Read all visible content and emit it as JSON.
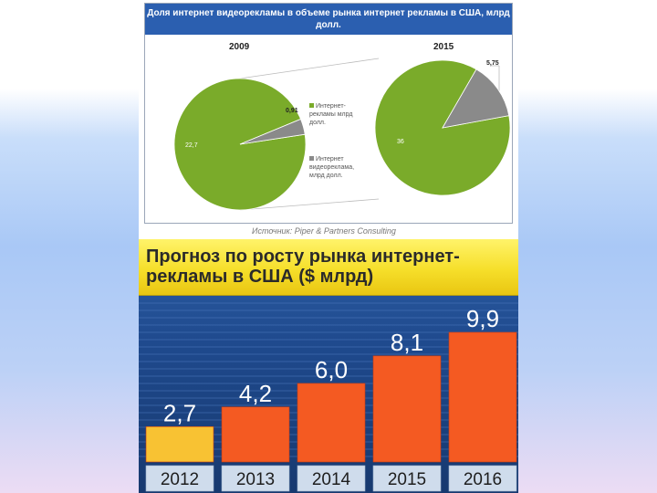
{
  "chart_data": [
    {
      "type": "pie",
      "title": "Доля интернет видеорекламы в объеме рынка интернет рекламы в США, млрд долл.",
      "legend": [
        "Интернет-рекламы млрд долл.",
        "Интернет видеореклама, млрд долл."
      ],
      "pies": [
        {
          "label": "2009",
          "slices": [
            {
              "value": 22.7,
              "label": "22,7",
              "color": "#7aab2a"
            },
            {
              "value": 0.91,
              "label": "0,91",
              "color": "#8a8a8a"
            }
          ]
        },
        {
          "label": "2015",
          "slices": [
            {
              "value": 36,
              "label": "36",
              "color": "#7aab2a"
            },
            {
              "value": 5.75,
              "label": "5,75",
              "color": "#8a8a8a"
            }
          ]
        }
      ],
      "source": "Источник: Piper & Partners Consulting"
    },
    {
      "type": "bar",
      "title": "Прогноз по росту рынка интернет-рекламы в США ($ млрд)",
      "categories": [
        "2012",
        "2013",
        "2014",
        "2015",
        "2016"
      ],
      "values": [
        2.7,
        4.2,
        6.0,
        8.1,
        9.9
      ],
      "value_labels": [
        "2,7",
        "4,2",
        "6,0",
        "8,1",
        "9,9"
      ],
      "colors": [
        "#f8c233",
        "#f45a22",
        "#f45a22",
        "#f45a22",
        "#f45a22"
      ],
      "ylim": [
        0,
        9.9
      ],
      "grid": true
    }
  ]
}
